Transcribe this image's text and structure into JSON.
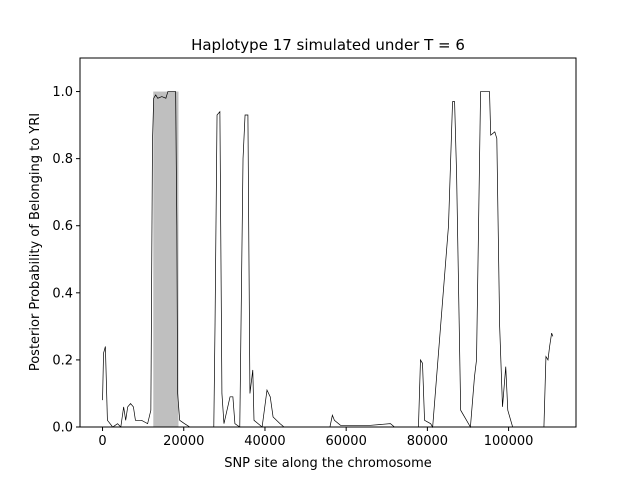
{
  "chart_data": {
    "type": "line",
    "title": "Haplotype 17 simulated under T = 6",
    "xlabel": "SNP site along the chromosome",
    "ylabel": "Posterior Probability of Belonging to YRI",
    "xlim": [
      -5550,
      116600
    ],
    "ylim": [
      0,
      1.1
    ],
    "xticks": [
      0,
      20000,
      40000,
      60000,
      80000,
      100000
    ],
    "yticks": [
      {
        "value": 0,
        "label": "0.0"
      },
      {
        "value": 0.2,
        "label": "0.2"
      },
      {
        "value": 0.4,
        "label": "0.4"
      },
      {
        "value": 0.6,
        "label": "0.6"
      },
      {
        "value": 0.8,
        "label": "0.8"
      },
      {
        "value": 1,
        "label": "1.0"
      }
    ],
    "highlight": {
      "x": [
        12500,
        18700
      ],
      "y": [
        0,
        1
      ],
      "color": "#bfbfbf"
    },
    "series": [
      {
        "color": "#000000",
        "x": [
          0,
          250,
          700,
          1200,
          2500,
          3700,
          4500,
          5200,
          5700,
          6200,
          6900,
          7600,
          8100,
          9600,
          11100,
          11900,
          12300,
          12600,
          13100,
          13600,
          14600,
          15600,
          16100,
          18000,
          18300,
          18500,
          19000,
          20200,
          21500,
          27400,
          27700,
          28200,
          28900,
          29400,
          29900,
          31400,
          32100,
          32600,
          33800,
          34600,
          35100,
          35800,
          36300,
          36800,
          37000,
          37300,
          39300,
          40500,
          41300,
          42000,
          43700,
          44700,
          56000,
          56600,
          57100,
          58600,
          66000,
          70900,
          71900,
          77800,
          78300,
          78800,
          79300,
          80800,
          81300,
          85200,
          86200,
          86700,
          87200,
          87700,
          88200,
          90600,
          91600,
          92100,
          93100,
          95300,
          95600,
          96600,
          97100,
          97800,
          98500,
          99300,
          99800,
          101000,
          108700,
          109200,
          109700,
          110100,
          110600,
          110900
        ],
        "values": [
          0.08,
          0.22,
          0.24,
          0.02,
          0.0,
          0.01,
          0.0,
          0.06,
          0.02,
          0.06,
          0.07,
          0.06,
          0.02,
          0.02,
          0.01,
          0.05,
          0.85,
          0.98,
          0.99,
          0.98,
          0.985,
          0.98,
          1.0,
          1.0,
          0.6,
          0.1,
          0.02,
          0.01,
          0.0,
          0.0,
          0.3,
          0.93,
          0.94,
          0.1,
          0.01,
          0.09,
          0.09,
          0.01,
          0.0,
          0.8,
          0.93,
          0.93,
          0.1,
          0.15,
          0.17,
          0.02,
          0.0,
          0.11,
          0.09,
          0.03,
          0.01,
          0.0,
          0.0,
          0.035,
          0.02,
          0.005,
          0.005,
          0.01,
          0.0,
          0.0,
          0.2,
          0.19,
          0.02,
          0.01,
          0.0,
          0.6,
          0.97,
          0.97,
          0.75,
          0.4,
          0.05,
          0.0,
          0.15,
          0.2,
          1.0,
          1.0,
          0.87,
          0.88,
          0.86,
          0.3,
          0.06,
          0.18,
          0.05,
          0.0,
          0.0,
          0.21,
          0.2,
          0.24,
          0.28,
          0.27
        ]
      }
    ]
  }
}
